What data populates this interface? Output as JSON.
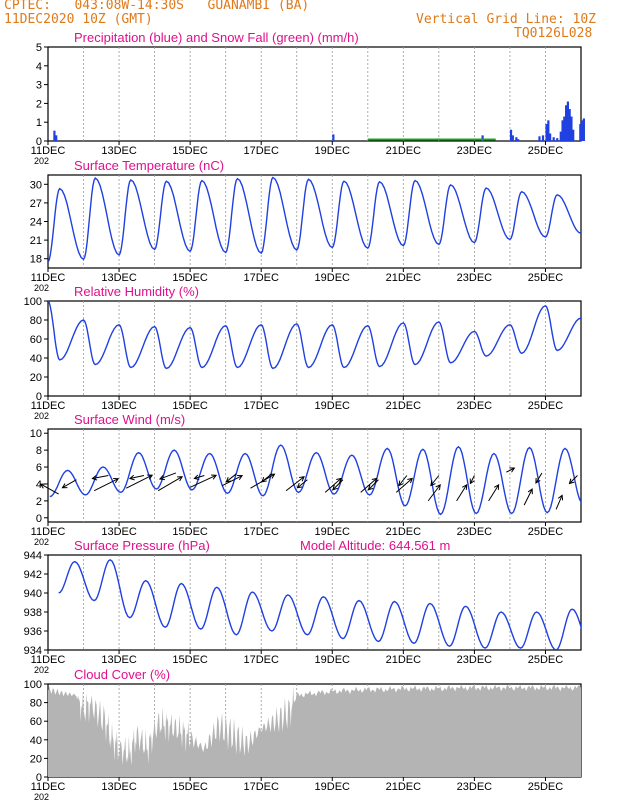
{
  "header": {
    "line1": "CPTEC:   043:08W-14:30S   GUANAMBI (BA)",
    "line2": "11DEC2020 10Z (GMT)",
    "right1": "Vertical Grid Line: 10Z",
    "right2": "TQ0126L028"
  },
  "colors": {
    "header": "#e07a1a",
    "title": "#e0108c",
    "line": "#2040e0",
    "snow": "#20a020",
    "cloud": "#b4b4b4",
    "grid": "#9a9a9a"
  },
  "x_ticks": [
    "11DEC",
    "13DEC",
    "15DEC",
    "17DEC",
    "19DEC",
    "21DEC",
    "23DEC",
    "25DEC"
  ],
  "year_stub": "202",
  "chart_data": [
    {
      "id": "precip",
      "type": "bar",
      "title": "Precipitation (blue) and Snow Fall (green) (mm/h)",
      "ylim": [
        0,
        5
      ],
      "yticks": [
        "0",
        "1",
        "2",
        "3",
        "4",
        "5"
      ],
      "series": [
        {
          "name": "Precipitation",
          "color": "#2040e0",
          "values": [
            0,
            0,
            0.55,
            0.3,
            0,
            0,
            0.35,
            0,
            0.3,
            0,
            0,
            0.6,
            0.3,
            0,
            0.2,
            0.1,
            0,
            0.25,
            0.3,
            0.9,
            1.1,
            0.4,
            0,
            0.2,
            0,
            0.15,
            0,
            0.5,
            1.1,
            1.3,
            1.9,
            2.1,
            1.7,
            1.3,
            0.6,
            0,
            0,
            0.9,
            1.1,
            1.2
          ],
          "x": [
            11.05,
            11.1,
            11.15,
            11.2,
            11.28,
            11.35,
            19.0,
            19.05,
            23.2,
            23.3,
            23.4,
            24.0,
            24.05,
            24.1,
            24.15,
            24.2,
            24.4,
            24.8,
            24.9,
            25.0,
            25.05,
            25.1,
            25.15,
            25.2,
            25.25,
            25.3,
            25.35,
            25.4,
            25.45,
            25.5,
            25.55,
            25.6,
            25.65,
            25.7,
            25.75,
            25.8,
            25.9,
            25.95,
            26.0,
            26.05
          ]
        },
        {
          "name": "Snow Fall",
          "color": "#20a020",
          "x": [
            20.0,
            23.6
          ],
          "level": 0.03
        }
      ]
    },
    {
      "id": "temp",
      "type": "line",
      "title": "Surface Temperature (nC)",
      "ylim": [
        16.5,
        31.5
      ],
      "yticks": [
        "18",
        "21",
        "24",
        "27",
        "30"
      ],
      "ytick_values": [
        18,
        21,
        24,
        27,
        30
      ],
      "series": [
        {
          "name": "Surface Temperature",
          "min": [
            17.5,
            17.9,
            18.6,
            19.5,
            19.2,
            19.0,
            18.9,
            19.4,
            19.8,
            19.7,
            20.1,
            20.3,
            20.6,
            21.1,
            21.5,
            22.1
          ],
          "max": [
            29.3,
            31.0,
            30.7,
            30.5,
            30.6,
            30.9,
            31.1,
            30.8,
            30.5,
            30.4,
            30.6,
            29.9,
            29.4,
            28.8,
            28.3,
            27.6
          ]
        }
      ]
    },
    {
      "id": "rh",
      "type": "line",
      "title": "Relative Humidity (%)",
      "ylim": [
        0,
        100
      ],
      "yticks": [
        "0",
        "20",
        "40",
        "60",
        "80",
        "100"
      ],
      "series": [
        {
          "name": "Relative Humidity",
          "min": [
            38,
            33,
            30,
            29,
            30,
            30,
            29,
            30,
            30,
            31,
            33,
            35,
            42,
            45,
            48,
            52
          ],
          "max": [
            100,
            80,
            75,
            73,
            72,
            74,
            75,
            76,
            75,
            74,
            77,
            78,
            68,
            75,
            95,
            82
          ]
        }
      ]
    },
    {
      "id": "wind",
      "type": "line",
      "title": "Surface Wind (m/s)",
      "ylim": [
        -0.5,
        10.5
      ],
      "yticks": [
        "0",
        "2",
        "4",
        "6",
        "8",
        "10"
      ],
      "series": [
        {
          "name": "Surface Wind",
          "min": [
            2.5,
            2.7,
            3.0,
            3.4,
            3.3,
            2.9,
            2.6,
            3.0,
            2.8,
            2.7,
            1.4,
            0.4,
            0.5,
            0.5,
            0.6,
            1.7
          ],
          "max": [
            5.6,
            6.0,
            7.7,
            8.0,
            7.6,
            7.6,
            8.6,
            7.7,
            7.4,
            8.2,
            8.1,
            8.4,
            7.6,
            8.3,
            8.2,
            8.0
          ]
        }
      ]
    },
    {
      "id": "pres",
      "type": "line",
      "title": "Surface Pressure (hPa)",
      "annotation": "Model Altitude: 644.561  m",
      "ylim": [
        934,
        944
      ],
      "yticks": [
        "934",
        "936",
        "938",
        "940",
        "942",
        "944"
      ],
      "series": [
        {
          "name": "Surface Pressure",
          "min": [
            940.0,
            939.2,
            937.4,
            936.4,
            936.2,
            935.6,
            936.0,
            935.6,
            935.2,
            934.9,
            934.7,
            934.4,
            934.2,
            934.2,
            934.0,
            934.0
          ],
          "max": [
            943.3,
            943.5,
            941.3,
            941.0,
            940.6,
            940.1,
            939.8,
            939.6,
            939.2,
            939.1,
            938.9,
            938.6,
            938.0,
            938.0,
            938.3,
            937.5
          ]
        }
      ]
    },
    {
      "id": "cloud",
      "type": "area",
      "title": "Cloud Cover (%)",
      "ylim": [
        0,
        100
      ],
      "yticks": [
        "0",
        "20",
        "40",
        "60",
        "80",
        "100"
      ],
      "series": [
        {
          "name": "Cloud Cover",
          "x": [
            11.0,
            11.4,
            11.8,
            12.0,
            12.2,
            12.6,
            12.8,
            13.0,
            13.3,
            13.5,
            13.8,
            14.1,
            14.4,
            14.7,
            15.0,
            15.4,
            15.8,
            16.2,
            16.6,
            17.0,
            17.4,
            17.8,
            18.0,
            18.5,
            19.0,
            19.5,
            20.0,
            20.5,
            21.0,
            21.5,
            22.0,
            22.5,
            23.0,
            23.5,
            24.0,
            24.5,
            25.0,
            25.5,
            26.0
          ],
          "values": [
            94,
            90,
            88,
            72,
            78,
            60,
            40,
            30,
            25,
            45,
            30,
            58,
            55,
            50,
            42,
            30,
            55,
            45,
            35,
            52,
            60,
            70,
            88,
            90,
            92,
            93,
            94,
            94,
            95,
            95,
            95,
            96,
            96,
            96,
            96,
            96,
            96,
            96,
            96
          ]
        }
      ]
    }
  ]
}
